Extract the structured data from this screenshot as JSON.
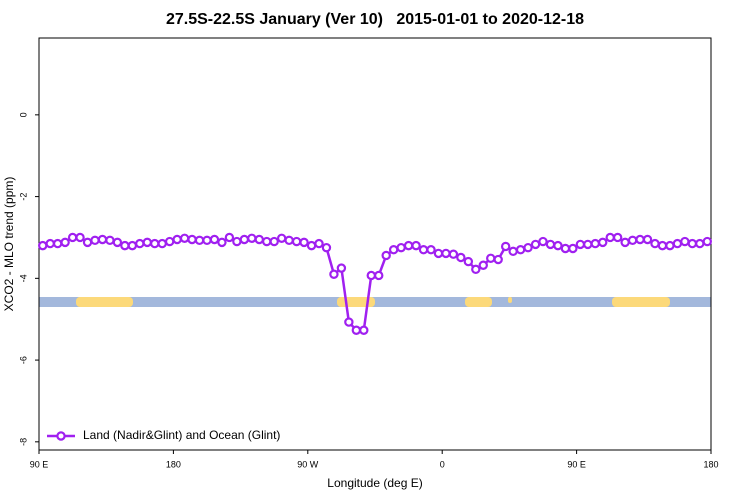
{
  "chart_data": {
    "type": "line",
    "title": "27.5S-22.5S January (Ver 10)   2015-01-01 to 2020-12-18",
    "xlabel": "Longitude (deg E)",
    "ylabel": "XCO2 - MLO trend (ppm)",
    "xlim": [
      90,
      540
    ],
    "xticks": [
      {
        "value": 90,
        "label": "90 E"
      },
      {
        "value": 180,
        "label": "180"
      },
      {
        "value": 270,
        "label": "90 W"
      },
      {
        "value": 360,
        "label": "0"
      },
      {
        "value": 450,
        "label": "90 E"
      },
      {
        "value": 540,
        "label": "180"
      }
    ],
    "ylim": [
      -8.2,
      1.88
    ],
    "yticks": [
      -8,
      -6,
      -4,
      -2,
      0
    ],
    "legend": "bottom-left",
    "x": [
      92.5,
      97.5,
      102.5,
      107.5,
      112.5,
      117.5,
      122.5,
      127.5,
      132.5,
      137.5,
      142.5,
      147.5,
      152.5,
      157.5,
      162.5,
      167.5,
      172.5,
      177.5,
      182.5,
      187.5,
      192.5,
      197.5,
      202.5,
      207.5,
      212.5,
      217.5,
      222.5,
      227.5,
      232.5,
      237.5,
      242.5,
      247.5,
      252.5,
      257.5,
      262.5,
      267.5,
      272.5,
      277.5,
      282.5,
      287.5,
      292.5,
      297.5,
      302.5,
      307.5,
      312.5,
      317.5,
      322.5,
      327.5,
      332.5,
      337.5,
      342.5,
      347.5,
      352.5,
      357.5,
      362.5,
      367.5,
      372.5,
      377.5,
      382.5,
      387.5,
      392.5,
      397.5,
      402.5,
      407.5,
      412.5,
      417.5,
      422.5,
      427.5,
      432.5,
      437.5,
      442.5,
      447.5,
      452.5,
      457.5,
      462.5,
      467.5,
      472.5,
      477.5,
      482.5,
      487.5,
      492.5,
      497.5,
      502.5,
      507.5,
      512.5,
      517.5,
      522.5,
      527.5,
      532.5,
      537.5
    ],
    "series": [
      {
        "name": "Land (Nadir&Glint) and Ocean (Glint)",
        "color": "#a020f0",
        "values": [
          -3.2,
          -3.15,
          -3.15,
          -3.12,
          -3.0,
          -3.0,
          -3.12,
          -3.07,
          -3.05,
          -3.07,
          -3.12,
          -3.2,
          -3.2,
          -3.15,
          -3.12,
          -3.15,
          -3.15,
          -3.1,
          -3.05,
          -3.02,
          -3.05,
          -3.07,
          -3.07,
          -3.05,
          -3.12,
          -3.0,
          -3.1,
          -3.05,
          -3.02,
          -3.05,
          -3.1,
          -3.1,
          -3.02,
          -3.07,
          -3.1,
          -3.12,
          -3.2,
          -3.15,
          -3.25,
          -3.9,
          -3.75,
          -5.07,
          -5.27,
          -5.27,
          -3.93,
          -3.93,
          -3.44,
          -3.3,
          -3.25,
          -3.2,
          -3.2,
          -3.3,
          -3.3,
          -3.39,
          -3.39,
          -3.41,
          -3.49,
          -3.59,
          -3.78,
          -3.68,
          -3.51,
          -3.54,
          -3.22,
          -3.34,
          -3.3,
          -3.25,
          -3.17,
          -3.1,
          -3.17,
          -3.2,
          -3.27,
          -3.27,
          -3.17,
          -3.17,
          -3.15,
          -3.12,
          -3.0,
          -3.0,
          -3.12,
          -3.07,
          -3.05,
          -3.05,
          -3.15,
          -3.2,
          -3.2,
          -3.15,
          -3.1,
          -3.15,
          -3.15,
          -3.1
        ]
      }
    ]
  }
}
